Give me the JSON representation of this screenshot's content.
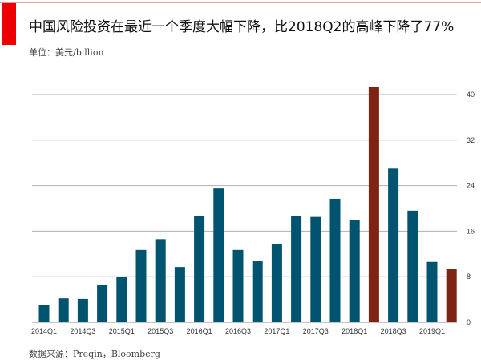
{
  "title": "中国风险投资在最近一个季度大幅下降，比2018Q2的高峰下降了77%",
  "unit": "单位：美元/billion",
  "source": "数据来源：Preqin，Bloomberg",
  "colors": {
    "accent": "#ee0000",
    "bar": "#01546f",
    "highlight": "#7d2414",
    "grid": "#b0b0b0"
  },
  "chart_data": {
    "type": "bar",
    "categories": [
      "2014Q1",
      "2014Q2",
      "2014Q3",
      "2014Q4",
      "2015Q1",
      "2015Q2",
      "2015Q3",
      "2015Q4",
      "2016Q1",
      "2016Q2",
      "2016Q3",
      "2016Q4",
      "2017Q1",
      "2017Q2",
      "2017Q3",
      "2017Q4",
      "2018Q1",
      "2018Q2",
      "2018Q3",
      "2018Q4",
      "2019Q1",
      "2019Q2"
    ],
    "values": [
      3.0,
      4.2,
      4.1,
      6.5,
      8.0,
      12.7,
      14.6,
      9.7,
      18.7,
      23.5,
      12.7,
      10.7,
      13.8,
      18.6,
      18.5,
      21.7,
      17.9,
      41.4,
      27.0,
      19.6,
      10.6,
      9.4
    ],
    "highlighted": [
      "2018Q2",
      "2019Q2"
    ],
    "x_tick_labels": [
      "2014Q1",
      "2014Q3",
      "2015Q1",
      "2015Q3",
      "2016Q1",
      "2016Q3",
      "2017Q1",
      "2017Q3",
      "2018Q1",
      "2018Q3",
      "2019Q1"
    ],
    "y_ticks": [
      0,
      8,
      16,
      24,
      32,
      40
    ],
    "ylim": [
      0,
      40
    ],
    "y_axis_side": "right",
    "grid": true,
    "xlabel": "",
    "ylabel": ""
  }
}
